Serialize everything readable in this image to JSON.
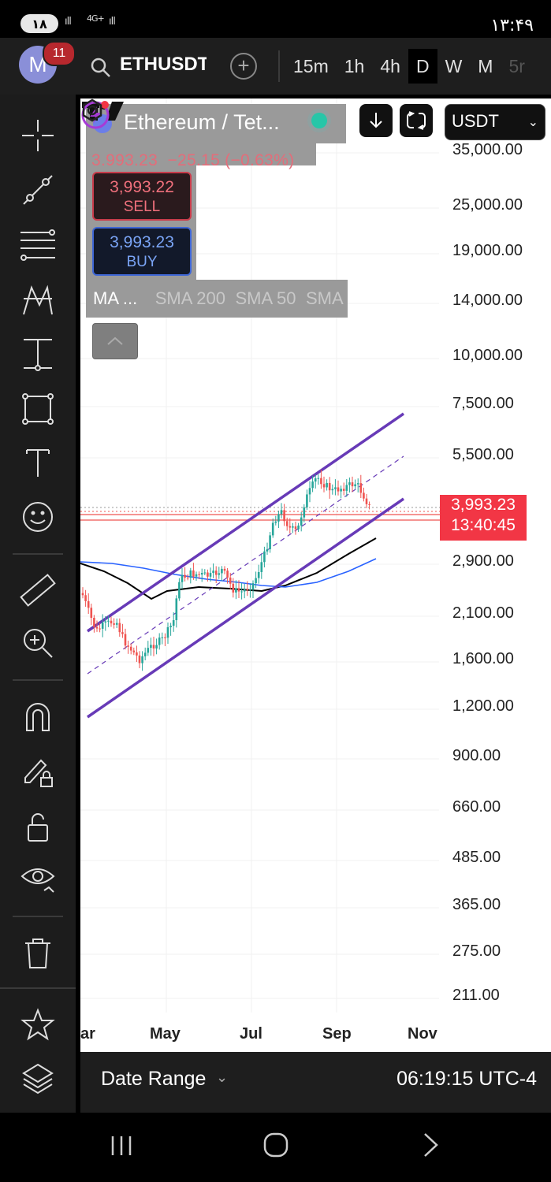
{
  "status_bar": {
    "left_badge": "۱۸",
    "signal_text": "4G+",
    "time": "۱۳:۴۹"
  },
  "header": {
    "avatar_letter": "M",
    "notification_count": "11",
    "symbol": "ETHUSDT",
    "intervals": [
      "15m",
      "1h",
      "4h",
      "D",
      "W",
      "M",
      "5r"
    ],
    "active_interval": "D"
  },
  "legend": {
    "title": "Ethereum / Tet...",
    "last_price": "3,993.23",
    "change": "−25.15 (−0.63%)",
    "sell": {
      "price": "3,993.22",
      "label": "SELL"
    },
    "buy": {
      "price": "3,993.23",
      "label": "BUY"
    },
    "indicators": [
      "MA ...",
      "SMA 200",
      "SMA 50",
      "SMA"
    ]
  },
  "currency": {
    "selected": "USDT"
  },
  "price_axis": [
    "35,000.00",
    "25,000.00",
    "19,000.00",
    "14,000.00",
    "10,000.00",
    "7,500.00",
    "5,500.00",
    "2,900.00",
    "2,100.00",
    "1,600.00",
    "1,200.00",
    "900.00",
    "660.00",
    "485.00",
    "365.00",
    "275.00",
    "211.00"
  ],
  "last_price_label": {
    "price": "3,993.23",
    "countdown": "13:40:45"
  },
  "time_axis": [
    "ar",
    "May",
    "Jul",
    "Sep",
    "Nov"
  ],
  "bottom_bar": {
    "date_range": "Date Range",
    "clock": "06:19:15 UTC-4"
  },
  "colors": {
    "bull": "#26a69a",
    "bear": "#ef5350",
    "channel": "#673ab7",
    "ma_black": "#000000",
    "ma_blue": "#2962ff",
    "last_price": "#f23645"
  }
}
